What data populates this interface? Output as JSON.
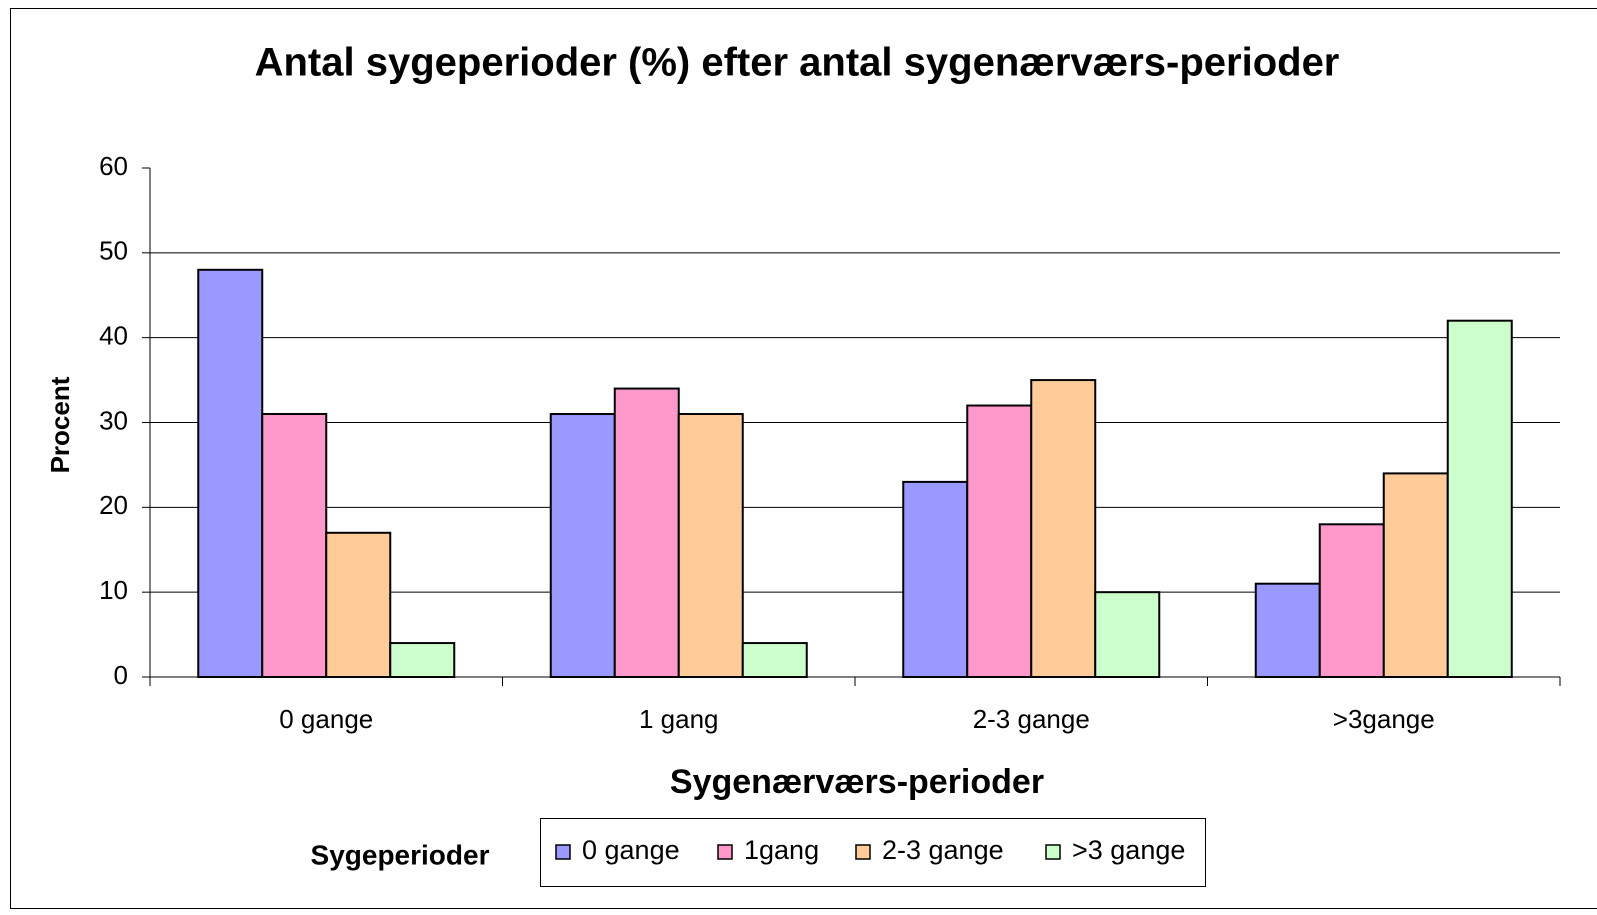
{
  "chart_data": {
    "type": "bar",
    "title": "Antal sygeperioder (%) efter antal sygenærværs-perioder",
    "x_label": "Sygenærværs-perioder",
    "y_label": "Procent",
    "legend_title": "Sygeperioder",
    "categories": [
      "0 gange",
      "1 gang",
      "2-3 gange",
      ">3gange"
    ],
    "series": [
      {
        "name": "0 gange",
        "color": "#9999ff",
        "values": [
          48,
          31,
          23,
          11
        ]
      },
      {
        "name": "1gang",
        "color": "#ff99cc",
        "values": [
          31,
          34,
          32,
          18
        ]
      },
      {
        "name": "2-3 gange",
        "color": "#ffcc99",
        "values": [
          17,
          31,
          35,
          24
        ]
      },
      {
        "name": ">3 gange",
        "color": "#ccffcc",
        "values": [
          4,
          4,
          10,
          42
        ]
      }
    ],
    "ylim": [
      0,
      60
    ],
    "yticks": [
      0,
      10,
      20,
      30,
      40,
      50,
      60
    ],
    "grid": true,
    "legend": "bottom"
  }
}
